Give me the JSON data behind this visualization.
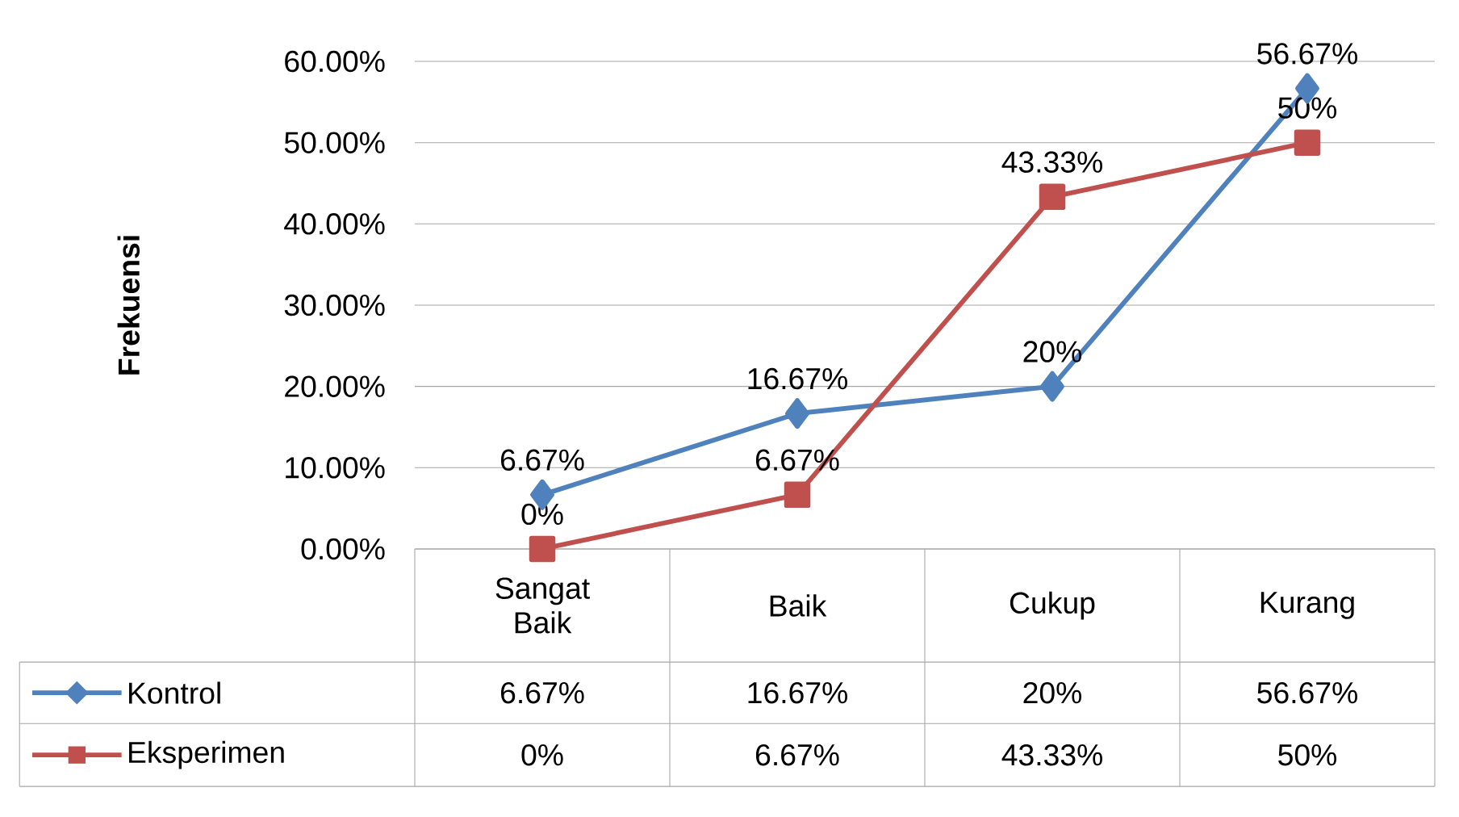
{
  "chart_data": {
    "type": "line",
    "ylabel": "Frekuensi",
    "categories": [
      "Sangat Baik",
      "Baik",
      "Cukup",
      "Kurang"
    ],
    "series": [
      {
        "name": "Kontrol",
        "color": "#4f81bd",
        "marker": "diamond",
        "values": [
          6.67,
          16.67,
          20,
          56.67
        ],
        "value_labels": [
          "6.67%",
          "16.67%",
          "20%",
          "56.67%"
        ]
      },
      {
        "name": "Eksperimen",
        "color": "#c0504d",
        "marker": "square",
        "values": [
          0,
          6.67,
          43.33,
          50
        ],
        "value_labels": [
          "0%",
          "6.67%",
          "43.33%",
          "50%"
        ]
      }
    ],
    "ylim": [
      0,
      60
    ],
    "yticks": [
      {
        "value": 0,
        "label": "0.00%"
      },
      {
        "value": 10,
        "label": "10.00%"
      },
      {
        "value": 20,
        "label": "20.00%"
      },
      {
        "value": 30,
        "label": "30.00%"
      },
      {
        "value": 40,
        "label": "40.00%"
      },
      {
        "value": 50,
        "label": "50.00%"
      },
      {
        "value": 60,
        "label": "60.00%"
      }
    ],
    "grid": "y",
    "legend": "bottom",
    "line_style": "solid"
  }
}
